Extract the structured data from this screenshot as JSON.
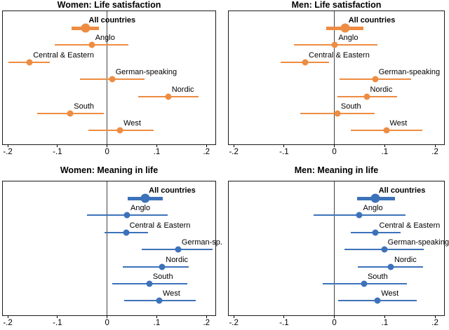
{
  "colors": {
    "life_satisfaction": "#EE8C42",
    "meaning_in_life": "#3C72B9",
    "zero_line": "#454545",
    "frame": "#1a1a1a",
    "text": "#000000",
    "background": "#FFFFFF"
  },
  "axis": {
    "range": [
      -0.21,
      0.218
    ],
    "ticks": [
      -0.2,
      -0.1,
      0,
      0.1,
      0.2
    ],
    "tick_labels": [
      "-.2",
      "-.1",
      "0",
      ".1",
      ".2"
    ],
    "grid": false
  },
  "chart_data": [
    {
      "type": "scatter",
      "variant": "coefficient-plot-with-ci",
      "title": "Women: Life satisfaction",
      "color_key": "life_satisfaction",
      "points": [
        {
          "label": "All countries",
          "estimate": -0.044,
          "ci": [
            -0.072,
            -0.016
          ],
          "emphasis": true
        },
        {
          "label": "Anglo",
          "estimate": -0.031,
          "ci": [
            -0.106,
            0.043
          ],
          "emphasis": false
        },
        {
          "label": "Central & Eastern",
          "estimate": -0.156,
          "ci": [
            -0.199,
            -0.116
          ],
          "emphasis": false
        },
        {
          "label": "German-speaking",
          "estimate": 0.01,
          "ci": [
            -0.054,
            0.075
          ],
          "emphasis": false
        },
        {
          "label": "Nordic",
          "estimate": 0.123,
          "ci": [
            0.063,
            0.184
          ],
          "emphasis": false
        },
        {
          "label": "South",
          "estimate": -0.074,
          "ci": [
            -0.141,
            -0.007
          ],
          "emphasis": false
        },
        {
          "label": "West",
          "estimate": 0.026,
          "ci": [
            -0.038,
            0.094
          ],
          "emphasis": false
        }
      ]
    },
    {
      "type": "scatter",
      "variant": "coefficient-plot-with-ci",
      "title": "Men: Life satisfaction",
      "color_key": "life_satisfaction",
      "points": [
        {
          "label": "All countries",
          "estimate": 0.021,
          "ci": [
            -0.016,
            0.058
          ],
          "emphasis": true
        },
        {
          "label": "Anglo",
          "estimate": 0.001,
          "ci": [
            -0.081,
            0.086
          ],
          "emphasis": false
        },
        {
          "label": "Central & Eastern",
          "estimate": -0.058,
          "ci": [
            -0.107,
            -0.01
          ],
          "emphasis": false
        },
        {
          "label": "German-speaking",
          "estimate": 0.081,
          "ci": [
            0.01,
            0.152
          ],
          "emphasis": false
        },
        {
          "label": "Nordic",
          "estimate": 0.064,
          "ci": [
            0.006,
            0.124
          ],
          "emphasis": false
        },
        {
          "label": "South",
          "estimate": 0.006,
          "ci": [
            -0.068,
            0.08
          ],
          "emphasis": false
        },
        {
          "label": "West",
          "estimate": 0.103,
          "ci": [
            0.033,
            0.175
          ],
          "emphasis": false
        }
      ]
    },
    {
      "type": "scatter",
      "variant": "coefficient-plot-with-ci",
      "title": "Women: Meaning in life",
      "color_key": "meaning_in_life",
      "points": [
        {
          "label": "All countries",
          "estimate": 0.077,
          "ci": [
            0.041,
            0.112
          ],
          "emphasis": true
        },
        {
          "label": "Anglo",
          "estimate": 0.04,
          "ci": [
            -0.041,
            0.122
          ],
          "emphasis": false
        },
        {
          "label": "Central & Eastern",
          "estimate": 0.038,
          "ci": [
            -0.005,
            0.083
          ],
          "emphasis": false
        },
        {
          "label": "German-sp.",
          "estimate": 0.143,
          "ci": [
            0.07,
            0.213
          ],
          "emphasis": false
        },
        {
          "label": "Nordic",
          "estimate": 0.111,
          "ci": [
            0.031,
            0.165
          ],
          "emphasis": false
        },
        {
          "label": "South",
          "estimate": 0.085,
          "ci": [
            0.011,
            0.161
          ],
          "emphasis": false
        },
        {
          "label": "West",
          "estimate": 0.105,
          "ci": [
            0.035,
            0.178
          ],
          "emphasis": false
        }
      ]
    },
    {
      "type": "scatter",
      "variant": "coefficient-plot-with-ci",
      "title": "Men: Meaning in life",
      "color_key": "meaning_in_life",
      "points": [
        {
          "label": "All countries",
          "estimate": 0.081,
          "ci": [
            0.045,
            0.121
          ],
          "emphasis": true
        },
        {
          "label": "Anglo",
          "estimate": 0.05,
          "ci": [
            -0.042,
            0.142
          ],
          "emphasis": false
        },
        {
          "label": "Central & Eastern",
          "estimate": 0.082,
          "ci": [
            0.033,
            0.131
          ],
          "emphasis": false
        },
        {
          "label": "German-speaking",
          "estimate": 0.099,
          "ci": [
            0.02,
            0.178
          ],
          "emphasis": false
        },
        {
          "label": "Nordic",
          "estimate": 0.112,
          "ci": [
            0.046,
            0.176
          ],
          "emphasis": false
        },
        {
          "label": "South",
          "estimate": 0.059,
          "ci": [
            -0.023,
            0.144
          ],
          "emphasis": false
        },
        {
          "label": "West",
          "estimate": 0.086,
          "ci": [
            0.008,
            0.164
          ],
          "emphasis": false
        }
      ]
    }
  ]
}
